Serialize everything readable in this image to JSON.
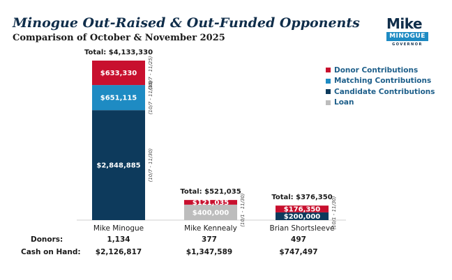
{
  "header": {
    "title": "Minogue Out-Raised & Out-Funded Opponents",
    "subtitle": "Comparison of October & November 2025"
  },
  "logo": {
    "name": "Mike",
    "bar_text": "MINOGUE",
    "sub_text": "GOVERNOR"
  },
  "colors": {
    "donor": "#c8102e",
    "matching": "#1e8bc3",
    "candidate": "#0d3a5c",
    "loan": "#bdbdbd"
  },
  "chart_data": {
    "type": "bar",
    "stacked": true,
    "categories": [
      "Mike Minogue",
      "Mike Kennealy",
      "Brian Shortsleeve"
    ],
    "series": [
      {
        "name": "Candidate Contributions",
        "values": [
          2848885,
          0,
          200000
        ]
      },
      {
        "name": "Loan",
        "values": [
          0,
          400000,
          0
        ]
      },
      {
        "name": "Matching Contributions",
        "values": [
          651115,
          0,
          0
        ]
      },
      {
        "name": "Donor Contributions",
        "values": [
          633330,
          121035,
          176350
        ]
      }
    ],
    "segment_labels": [
      [
        "$2,848,885",
        "",
        "$200,000"
      ],
      [
        "",
        "$400,000",
        ""
      ],
      [
        "$651,115",
        "",
        ""
      ],
      [
        "$633,330",
        "$121,035",
        "$176,350"
      ]
    ],
    "totals": [
      "Total: $4,133,330",
      "Total: $521,035",
      "Total: $376,350"
    ],
    "period_notes": [
      [
        "(10/7 - 11/30)",
        "(10/7 - 11/30)",
        "(10/7 - 11/25)"
      ],
      [
        "(10/1 - 11/30)"
      ],
      [
        "(10/1 - 11/30)"
      ]
    ],
    "legend": [
      "Donor Contributions",
      "Matching Contributions",
      "Candidate Contributions",
      "Loan"
    ],
    "legend_position": "top-right",
    "ylim": [
      0,
      4133330
    ],
    "grid": false
  },
  "table": {
    "rows": [
      {
        "label": "Donors:",
        "values": [
          "1,134",
          "377",
          "497"
        ]
      },
      {
        "label": "Cash on Hand:",
        "values": [
          "$2,126,817",
          "$1,347,589",
          "$747,497"
        ]
      }
    ]
  }
}
